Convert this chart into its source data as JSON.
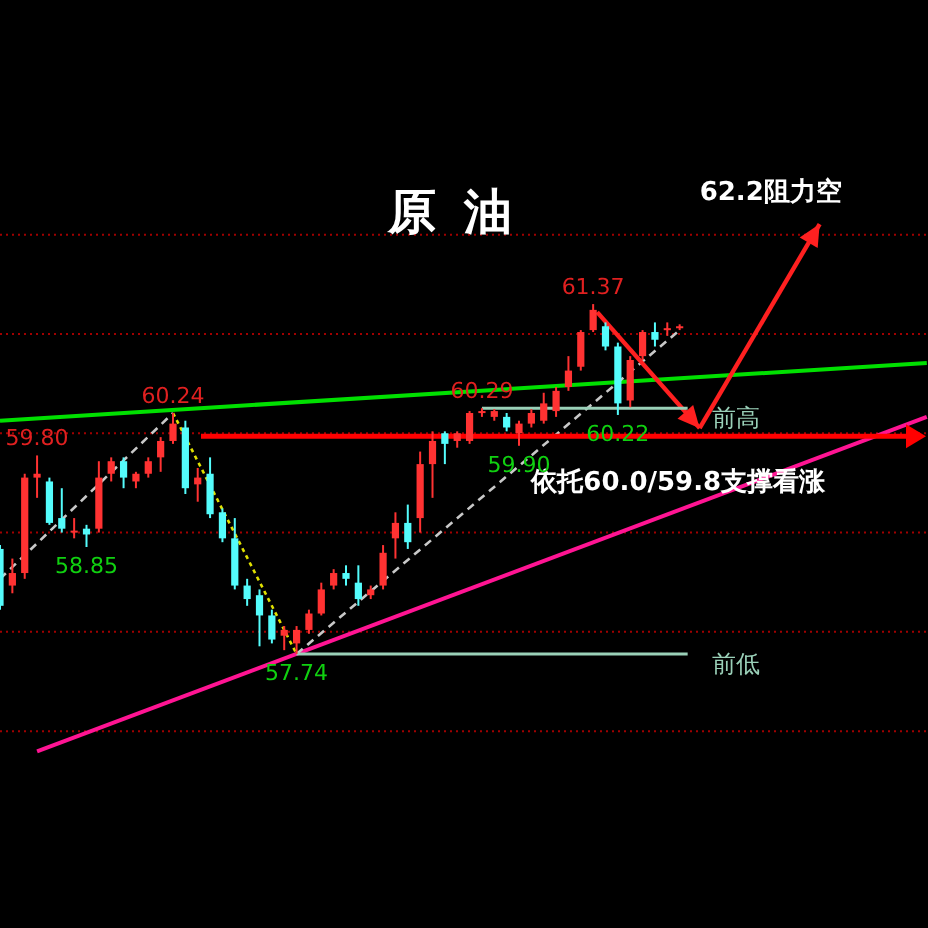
{
  "chart_data": {
    "type": "candlestick",
    "title": "原油",
    "annotations": [
      "62.2阻力空",
      "依托60.0/59.8支撑看涨",
      {
        "text": "61.37",
        "y": 61.37
      },
      {
        "text": "60.24",
        "y": 60.24
      },
      {
        "text": "59.80",
        "y": 59.8
      },
      {
        "text": "58.85",
        "y": 58.85
      },
      {
        "text": "57.74",
        "y": 57.74
      },
      {
        "text": "60.29",
        "y": 60.29
      },
      {
        "text": "59.90",
        "y": 59.9
      },
      {
        "text": "60.22",
        "y": 60.22
      }
    ],
    "categories": [
      null,
      null,
      null,
      null,
      null,
      null,
      null,
      null,
      null,
      null,
      null,
      null,
      null,
      null,
      null,
      null,
      null,
      null,
      null,
      null,
      null,
      null,
      null,
      null,
      null,
      null,
      null,
      null,
      null,
      null,
      null,
      null,
      null,
      null,
      null,
      null,
      null,
      null,
      null,
      null,
      null,
      null,
      null,
      null,
      null,
      null,
      null,
      null,
      null,
      null,
      null,
      null,
      null,
      null,
      null,
      null,
      null,
      null,
      null,
      null,
      null,
      null,
      null,
      null,
      null,
      null,
      null,
      null,
      null,
      null,
      null,
      null,
      null,
      null,
      null,
      null
    ],
    "ohlc": [
      [
        58.83,
        58.87,
        58.2,
        58.24
      ],
      [
        58.45,
        58.73,
        58.37,
        58.58
      ],
      [
        58.58,
        59.61,
        58.52,
        59.57
      ],
      [
        59.57,
        59.8,
        59.36,
        59.61
      ],
      [
        59.53,
        59.57,
        59.08,
        59.1
      ],
      [
        59.15,
        59.46,
        59.0,
        59.04
      ],
      [
        59.0,
        59.15,
        58.94,
        59.02
      ],
      [
        59.04,
        59.08,
        58.85,
        58.98
      ],
      [
        59.04,
        59.74,
        59.0,
        59.57
      ],
      [
        59.61,
        59.78,
        59.53,
        59.74
      ],
      [
        59.74,
        59.78,
        59.46,
        59.57
      ],
      [
        59.53,
        59.63,
        59.46,
        59.61
      ],
      [
        59.61,
        59.78,
        59.57,
        59.74
      ],
      [
        59.78,
        59.99,
        59.63,
        59.95
      ],
      [
        59.95,
        60.24,
        59.92,
        60.13
      ],
      [
        60.09,
        60.16,
        59.4,
        59.46
      ],
      [
        59.5,
        59.67,
        59.32,
        59.57
      ],
      [
        59.61,
        59.78,
        59.15,
        59.19
      ],
      [
        59.21,
        59.25,
        58.9,
        58.94
      ],
      [
        58.94,
        59.15,
        58.41,
        58.45
      ],
      [
        58.45,
        58.52,
        58.24,
        58.31
      ],
      [
        58.35,
        58.41,
        57.82,
        58.14
      ],
      [
        58.14,
        58.2,
        57.85,
        57.89
      ],
      [
        57.93,
        58.03,
        57.78,
        57.99
      ],
      [
        57.85,
        58.03,
        57.74,
        57.99
      ],
      [
        57.99,
        58.2,
        57.95,
        58.16
      ],
      [
        58.16,
        58.48,
        58.14,
        58.41
      ],
      [
        58.45,
        58.62,
        58.41,
        58.58
      ],
      [
        58.58,
        58.66,
        58.45,
        58.52
      ],
      [
        58.48,
        58.66,
        58.24,
        58.31
      ],
      [
        58.35,
        58.45,
        58.31,
        58.41
      ],
      [
        58.45,
        58.87,
        58.41,
        58.79
      ],
      [
        58.94,
        59.21,
        58.73,
        59.1
      ],
      [
        59.1,
        59.29,
        58.83,
        58.9
      ],
      [
        59.15,
        59.84,
        59.0,
        59.71
      ],
      [
        59.71,
        60.05,
        59.36,
        59.95
      ],
      [
        60.03,
        60.05,
        59.71,
        59.92
      ],
      [
        59.95,
        60.05,
        59.88,
        60.03
      ],
      [
        59.95,
        60.26,
        59.92,
        60.24
      ],
      [
        60.24,
        60.29,
        60.2,
        60.26
      ],
      [
        60.2,
        60.28,
        60.16,
        60.26
      ],
      [
        60.2,
        60.24,
        60.05,
        60.09
      ],
      [
        60.03,
        60.16,
        59.9,
        60.13
      ],
      [
        60.13,
        60.28,
        60.09,
        60.24
      ],
      [
        60.16,
        60.45,
        60.13,
        60.34
      ],
      [
        60.26,
        60.51,
        60.2,
        60.47
      ],
      [
        60.51,
        60.83,
        60.47,
        60.68
      ],
      [
        60.72,
        61.1,
        60.68,
        61.08
      ],
      [
        61.1,
        61.37,
        61.08,
        61.31
      ],
      [
        61.14,
        61.18,
        60.89,
        60.93
      ],
      [
        60.93,
        60.97,
        60.22,
        60.34
      ],
      [
        60.37,
        60.83,
        60.3,
        60.79
      ],
      [
        60.83,
        61.1,
        60.79,
        61.08
      ],
      [
        61.08,
        61.18,
        60.93,
        61.0
      ],
      [
        61.1,
        61.18,
        61.04,
        61.12
      ],
      [
        61.12,
        61.16,
        61.1,
        61.14
      ],
      null,
      null,
      null,
      null,
      null,
      null,
      null,
      null,
      null,
      null,
      null,
      null,
      null,
      null,
      null,
      null,
      null,
      null,
      null,
      null
    ],
    "colors": [
      "#54fcfc",
      "#ff3232",
      "#ff3232",
      "#ff3232",
      "#54fcfc",
      "#54fcfc",
      "#ff3232",
      "#54fcfc",
      "#ff3232",
      "#ff3232",
      "#54fcfc",
      "#ff3232",
      "#ff3232",
      "#ff3232",
      "#ff3232",
      "#54fcfc",
      "#ff3232",
      "#54fcfc",
      "#54fcfc",
      "#54fcfc",
      "#54fcfc",
      "#54fcfc",
      "#54fcfc",
      "#ff3232",
      "#ff3232",
      "#ff3232",
      "#ff3232",
      "#ff3232",
      "#54fcfc",
      "#54fcfc",
      "#ff3232",
      "#ff3232",
      "#ff3232",
      "#54fcfc",
      "#ff3232",
      "#ff3232",
      "#54fcfc",
      "#ff3232",
      "#ff3232",
      "#ff3232",
      "#ff3232",
      "#54fcfc",
      "#ff3232",
      "#ff3232",
      "#ff3232",
      "#ff3232",
      "#ff3232",
      "#ff3232",
      "#ff3232",
      "#54fcfc",
      "#54fcfc",
      "#ff3232",
      "#ff3232",
      "#54fcfc",
      "#ff3232",
      "#ff3232",
      null,
      null,
      null,
      null,
      null,
      null,
      null,
      null,
      null,
      null,
      null,
      null,
      null,
      null,
      null,
      null,
      null,
      null,
      null,
      null
    ],
    "series": [
      {
        "type": "line",
        "values": [
          60.16,
          null,
          null,
          null,
          null,
          null,
          null,
          null,
          null,
          null,
          null,
          null,
          null,
          null,
          null,
          null,
          null,
          null,
          null,
          null,
          null,
          null,
          null,
          null,
          null,
          null,
          null,
          null,
          null,
          null,
          null,
          null,
          null,
          null,
          null,
          null,
          null,
          null,
          null,
          null,
          null,
          null,
          null,
          null,
          null,
          null,
          null,
          null,
          null,
          null,
          null,
          null,
          null,
          null,
          null,
          null,
          null,
          null,
          null,
          null,
          null,
          null,
          null,
          null,
          null,
          null,
          null,
          null,
          null,
          null,
          null,
          null,
          null,
          null,
          null,
          60.76
        ],
        "color": "#00e000",
        "line_style": "solid"
      },
      {
        "type": "line",
        "values": [
          null,
          null,
          null,
          56.73,
          null,
          null,
          null,
          null,
          null,
          null,
          null,
          null,
          null,
          null,
          null,
          null,
          null,
          null,
          null,
          null,
          null,
          null,
          null,
          null,
          null,
          null,
          null,
          null,
          null,
          null,
          null,
          null,
          null,
          null,
          null,
          null,
          null,
          null,
          null,
          null,
          null,
          null,
          null,
          null,
          null,
          null,
          null,
          null,
          null,
          null,
          null,
          null,
          null,
          null,
          null,
          null,
          null,
          null,
          null,
          null,
          null,
          null,
          null,
          null,
          null,
          null,
          null,
          null,
          null,
          null,
          null,
          null,
          null,
          null,
          null,
          60.2
        ],
        "color": "#ff1493",
        "line_style": "solid"
      },
      {
        "type": "line",
        "values": [
          58.52,
          null,
          null,
          null,
          null,
          null,
          null,
          null,
          null,
          null,
          null,
          null,
          null,
          null,
          60.24,
          null,
          null,
          null,
          null,
          null,
          null,
          null,
          null,
          null,
          null,
          null,
          null,
          null,
          null,
          null,
          null,
          null,
          null,
          null,
          null,
          null,
          null,
          null,
          null,
          null,
          null,
          null,
          null,
          null,
          null,
          null,
          null,
          null,
          null,
          null,
          null,
          null,
          null,
          null,
          null,
          null,
          null,
          null,
          null,
          null,
          null,
          null,
          null,
          null,
          null,
          null,
          null,
          null,
          null,
          null,
          null,
          null,
          null,
          null,
          null,
          null
        ],
        "color": "#c8c8c8",
        "line_style": "dashed"
      },
      {
        "type": "line",
        "values": [
          null,
          null,
          null,
          null,
          null,
          null,
          null,
          null,
          null,
          null,
          null,
          null,
          null,
          null,
          60.24,
          null,
          null,
          null,
          null,
          null,
          null,
          null,
          null,
          null,
          57.74,
          null,
          null,
          null,
          null,
          null,
          null,
          null,
          null,
          null,
          null,
          null,
          null,
          null,
          null,
          null,
          null,
          null,
          null,
          null,
          null,
          null,
          null,
          null,
          null,
          null,
          null,
          null,
          null,
          null,
          null,
          null,
          null,
          null,
          null,
          null,
          null,
          null,
          null,
          null,
          null,
          null,
          null,
          null,
          null,
          null,
          null,
          null,
          null,
          null,
          null,
          null
        ],
        "color": "#e0e000",
        "line_style": "dotted"
      },
      {
        "type": "line",
        "values": [
          null,
          null,
          null,
          null,
          null,
          null,
          null,
          null,
          null,
          null,
          null,
          null,
          null,
          null,
          null,
          null,
          null,
          null,
          null,
          null,
          null,
          null,
          null,
          null,
          57.74,
          null,
          null,
          null,
          null,
          null,
          null,
          null,
          null,
          null,
          null,
          null,
          null,
          null,
          null,
          null,
          null,
          null,
          null,
          null,
          null,
          null,
          null,
          null,
          null,
          null,
          null,
          null,
          null,
          null,
          null,
          61.1,
          null,
          null,
          null,
          null,
          null,
          null,
          null,
          null,
          null,
          null,
          null,
          null,
          null,
          null,
          null,
          null,
          null,
          null,
          null,
          null
        ],
        "color": "#c8c8c8",
        "line_style": "dashed"
      }
    ],
    "ref_lines": [
      {
        "axis": "y",
        "value": 60.0,
        "color": "#ff0000"
      },
      {
        "axis": "y",
        "value": 60.29,
        "label": "前高",
        "color": "#9ad0b8"
      },
      {
        "axis": "y",
        "value": 57.74,
        "label": "前低",
        "color": "#9ad0b8"
      }
    ],
    "yticks": [
      {
        "value": 62.09,
        "label": null
      },
      {
        "value": 61.06,
        "label": null
      },
      {
        "value": 60.03,
        "label": null
      },
      {
        "value": 59.0,
        "label": null
      },
      {
        "value": 57.97,
        "label": null
      },
      {
        "value": 56.94,
        "label": null
      }
    ],
    "grid": "y"
  }
}
